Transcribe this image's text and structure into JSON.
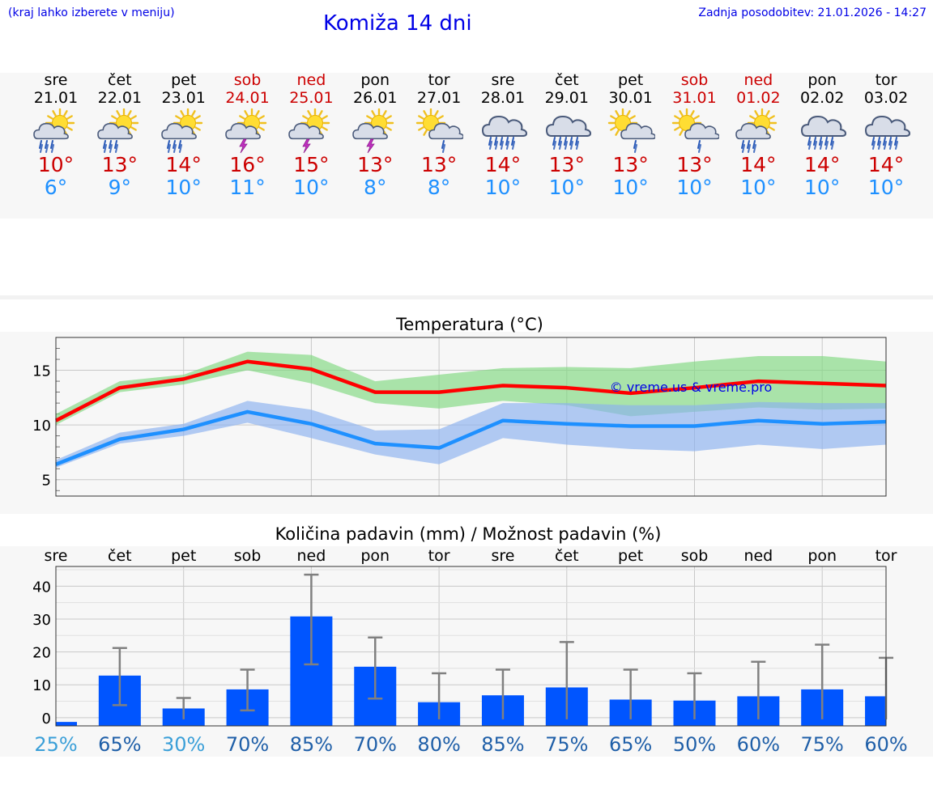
{
  "header": {
    "left_note": "(kraj lahko izberete v meniju)",
    "title": "Komiža 14 dni",
    "last_update": "Zadnja posodobitev: 21.01.2026 - 14:27"
  },
  "days": [
    {
      "name": "sre",
      "date": "21.01",
      "weekend": false,
      "icon": "sun-cloud-rain-icon",
      "tmax": "10°",
      "tmin": "6°"
    },
    {
      "name": "čet",
      "date": "22.01",
      "weekend": false,
      "icon": "sun-cloud-rain-icon",
      "tmax": "13°",
      "tmin": "9°"
    },
    {
      "name": "pet",
      "date": "23.01",
      "weekend": false,
      "icon": "sun-cloud-rain-icon",
      "tmax": "14°",
      "tmin": "10°"
    },
    {
      "name": "sob",
      "date": "24.01",
      "weekend": true,
      "icon": "sun-cloud-thunder-icon",
      "tmax": "16°",
      "tmin": "11°"
    },
    {
      "name": "ned",
      "date": "25.01",
      "weekend": true,
      "icon": "sun-cloud-thunder-icon",
      "tmax": "15°",
      "tmin": "10°"
    },
    {
      "name": "pon",
      "date": "26.01",
      "weekend": false,
      "icon": "sun-cloud-thunder-icon",
      "tmax": "13°",
      "tmin": "8°"
    },
    {
      "name": "tor",
      "date": "27.01",
      "weekend": false,
      "icon": "sun-cloud-light-rain-icon",
      "tmax": "13°",
      "tmin": "8°"
    },
    {
      "name": "sre",
      "date": "28.01",
      "weekend": false,
      "icon": "cloud-rain-icon",
      "tmax": "14°",
      "tmin": "10°"
    },
    {
      "name": "čet",
      "date": "29.01",
      "weekend": false,
      "icon": "cloud-rain-icon",
      "tmax": "13°",
      "tmin": "10°"
    },
    {
      "name": "pet",
      "date": "30.01",
      "weekend": false,
      "icon": "sun-cloud-light-rain-icon",
      "tmax": "13°",
      "tmin": "10°"
    },
    {
      "name": "sob",
      "date": "31.01",
      "weekend": true,
      "icon": "sun-cloud-light-rain-icon",
      "tmax": "13°",
      "tmin": "10°"
    },
    {
      "name": "ned",
      "date": "01.02",
      "weekend": true,
      "icon": "sun-cloud-rain-icon",
      "tmax": "14°",
      "tmin": "10°"
    },
    {
      "name": "pon",
      "date": "02.02",
      "weekend": false,
      "icon": "cloud-rain-icon",
      "tmax": "14°",
      "tmin": "10°"
    },
    {
      "name": "tor",
      "date": "03.02",
      "weekend": false,
      "icon": "cloud-rain-icon",
      "tmax": "14°",
      "tmin": "10°"
    }
  ],
  "chart_data": [
    {
      "type": "line",
      "title": "Temperatura (°C)",
      "watermark": "© vreme.us & vreme.pro",
      "ylim": [
        3.5,
        18
      ],
      "yticks": [
        5,
        10,
        15
      ],
      "grid": true,
      "x": [
        0,
        1,
        2,
        3,
        4,
        5,
        6,
        7,
        8,
        9,
        10,
        11,
        12,
        13
      ],
      "series": [
        {
          "name": "max",
          "color": "#ff0000",
          "values": [
            10.4,
            13.4,
            14.2,
            15.8,
            15.1,
            13.0,
            13.0,
            13.6,
            13.4,
            12.9,
            13.4,
            14.0,
            13.8,
            13.6
          ],
          "band_low": [
            10.0,
            13.0,
            13.7,
            15.0,
            13.8,
            12.0,
            11.5,
            12.2,
            11.8,
            10.8,
            11.2,
            11.6,
            11.4,
            11.5
          ],
          "band_high": [
            11.0,
            14.0,
            14.6,
            16.7,
            16.4,
            14.0,
            14.6,
            15.2,
            15.3,
            15.2,
            15.8,
            16.3,
            16.3,
            15.8
          ]
        },
        {
          "name": "min",
          "color": "#1e90ff",
          "values": [
            6.4,
            8.7,
            9.6,
            11.2,
            10.1,
            8.3,
            7.9,
            10.4,
            10.1,
            9.9,
            9.9,
            10.4,
            10.1,
            10.3
          ],
          "band_low": [
            6.1,
            8.3,
            9.0,
            10.2,
            8.8,
            7.3,
            6.4,
            8.8,
            8.2,
            7.8,
            7.6,
            8.2,
            7.8,
            8.2
          ],
          "band_high": [
            6.8,
            9.3,
            10.1,
            12.2,
            11.4,
            9.5,
            9.6,
            12.0,
            12.0,
            11.8,
            11.8,
            12.1,
            12.0,
            12.0
          ]
        }
      ]
    },
    {
      "type": "bar",
      "title": "Količina padavin (mm) / Možnost padavin (%)",
      "categories": [
        "sre",
        "čet",
        "pet",
        "sob",
        "ned",
        "pon",
        "tor",
        "sre",
        "čet",
        "pet",
        "sob",
        "ned",
        "pon",
        "tor"
      ],
      "ylim": [
        -2.5,
        46
      ],
      "yticks": [
        0,
        10,
        20,
        30,
        40
      ],
      "grid": true,
      "values": [
        -1.3,
        12.8,
        2.8,
        8.6,
        30.8,
        15.5,
        4.7,
        6.8,
        9.2,
        5.5,
        5.2,
        6.5,
        8.6,
        6.5
      ],
      "err_low": [
        -0.5,
        3.8,
        -0.5,
        2.2,
        16.2,
        5.8,
        -0.5,
        -0.5,
        -0.5,
        -0.5,
        -0.5,
        -0.5,
        -0.5,
        -0.5
      ],
      "err_high": [
        -0.5,
        21.2,
        6.0,
        14.6,
        43.5,
        24.4,
        13.5,
        14.6,
        23.0,
        14.6,
        13.5,
        17.0,
        22.2,
        18.2
      ],
      "probability": [
        "25%",
        "65%",
        "30%",
        "70%",
        "85%",
        "70%",
        "80%",
        "85%",
        "75%",
        "65%",
        "50%",
        "60%",
        "75%",
        "60%"
      ],
      "probability_colors": [
        "#3a9fd8",
        "#1f5fa8",
        "#3a9fd8",
        "#1f5fa8",
        "#1f5fa8",
        "#1f5fa8",
        "#1f5fa8",
        "#1f5fa8",
        "#1f5fa8",
        "#1f5fa8",
        "#1f5fa8",
        "#1f5fa8",
        "#1f5fa8",
        "#1f5fa8"
      ],
      "bar_color": "#0055ff",
      "error_color": "#808080"
    }
  ]
}
